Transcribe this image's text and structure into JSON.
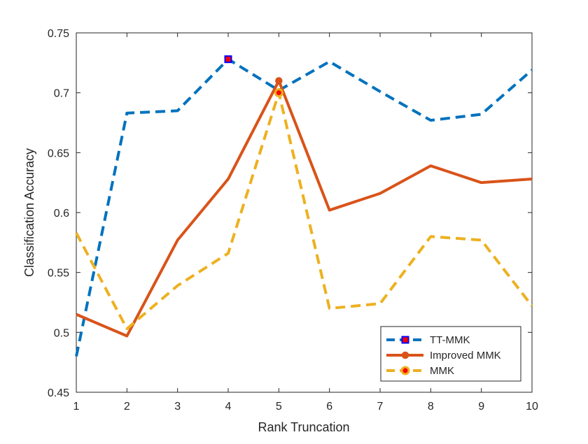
{
  "chart_data": {
    "type": "line",
    "title": "",
    "xlabel": "Rank Truncation",
    "ylabel": "Classification Accuracy",
    "xlim": [
      1,
      10
    ],
    "ylim": [
      0.45,
      0.75
    ],
    "x": [
      1,
      2,
      3,
      4,
      5,
      6,
      7,
      8,
      9,
      10
    ],
    "xticks": [
      "1",
      "2",
      "3",
      "4",
      "5",
      "6",
      "7",
      "8",
      "9",
      "10"
    ],
    "yticks": [
      "0.45",
      "0.5",
      "0.55",
      "0.6",
      "0.65",
      "0.7",
      "0.75"
    ],
    "grid": false,
    "legend_location": "bottom-right",
    "series": [
      {
        "name": "TT-MMK",
        "values": [
          0.48,
          0.683,
          0.685,
          0.728,
          0.702,
          0.726,
          0.701,
          0.677,
          0.682,
          0.719
        ],
        "color": "#0072BD",
        "line_style": "dashed",
        "marker": "square",
        "marker_face": "#ff0000",
        "marker_edge": "#0000ff",
        "highlight_index": 3
      },
      {
        "name": "Improved MMK",
        "values": [
          0.515,
          0.497,
          0.577,
          0.628,
          0.71,
          0.602,
          0.616,
          0.639,
          0.625,
          0.628
        ],
        "color": "#D95319",
        "line_style": "solid",
        "marker": "circle",
        "marker_face": "#D95319",
        "marker_edge": "#D95319",
        "highlight_index": 4
      },
      {
        "name": "MMK",
        "values": [
          0.583,
          0.503,
          0.539,
          0.566,
          0.7,
          0.52,
          0.524,
          0.58,
          0.577,
          0.522
        ],
        "color": "#EDB120",
        "line_style": "dashed",
        "marker": "circle",
        "marker_face": "#ff0000",
        "marker_edge": "#EDB120",
        "highlight_index": 4
      }
    ]
  }
}
